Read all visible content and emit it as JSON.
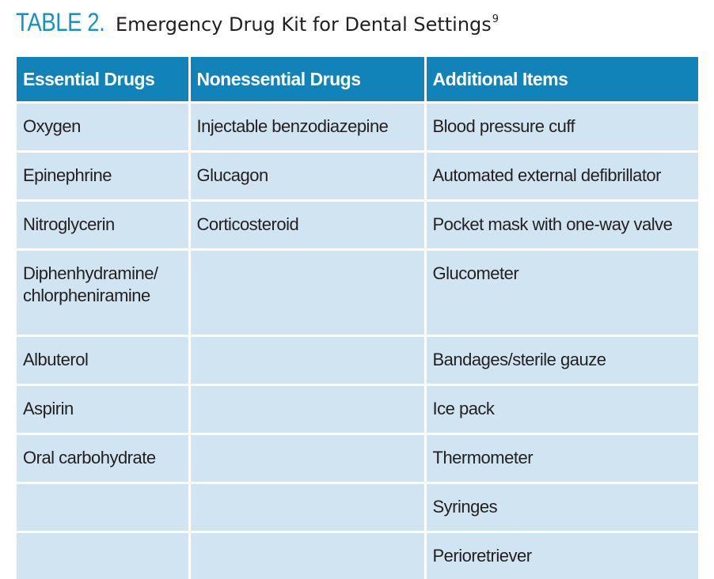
{
  "title": {
    "label": "TABLE 2.",
    "text": "Emergency Drug Kit for Dental Settings",
    "superscript": "9"
  },
  "colors": {
    "title_label": "#1b8fc2",
    "header_bg": "#1283b9",
    "cell_bg": "#d1e4f2",
    "text": "#231f20"
  },
  "table": {
    "headers": [
      "Essential Drugs",
      "Nonessential Drugs",
      "Additional Items"
    ],
    "rows": [
      [
        "Oxygen",
        "Injectable benzodiazepine",
        "Blood pressure cuff"
      ],
      [
        "Epinephrine",
        "Glucagon",
        "Automated external defibrillator"
      ],
      [
        "Nitroglycerin",
        "Corticosteroid",
        "Pocket mask with one-way valve"
      ],
      [
        "Diphenhydramine/\nchlorpheniramine",
        "",
        "Glucometer"
      ],
      [
        "Albuterol",
        "",
        "Bandages/sterile gauze"
      ],
      [
        "Aspirin",
        "",
        "Ice pack"
      ],
      [
        "Oral carbohydrate",
        "",
        "Thermometer"
      ],
      [
        "",
        "",
        "Syringes"
      ],
      [
        "",
        "",
        "Perioretriever"
      ]
    ]
  }
}
